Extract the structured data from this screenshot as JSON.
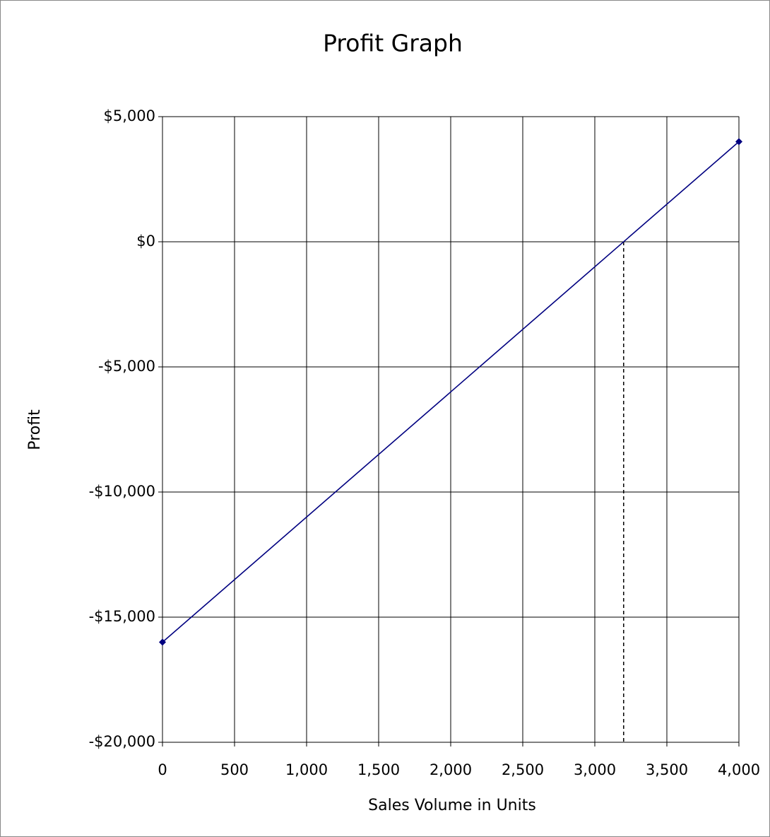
{
  "chart_data": {
    "type": "line",
    "title": "Profit Graph",
    "x_label": "Sales Volume in Units",
    "y_label": "Profit",
    "x": [
      0,
      4000
    ],
    "series": [
      {
        "name": "Profit",
        "color": "#000080",
        "values": [
          -16000,
          4000
        ]
      }
    ],
    "vline_x": 3200,
    "xlim": [
      0,
      4000
    ],
    "xticks": [
      0,
      500,
      {
        "value": 1000,
        "label": "1,000"
      },
      {
        "value": 1500,
        "label": "1,500"
      },
      {
        "value": 2000,
        "label": "2,000"
      },
      {
        "value": 2500,
        "label": "2,500"
      },
      {
        "value": 3000,
        "label": "3,000"
      },
      {
        "value": 3500,
        "label": "3,500"
      },
      {
        "value": 4000,
        "label": "4,000"
      }
    ],
    "ylim": [
      -20000,
      5000
    ],
    "yticks": [
      {
        "value": 5000,
        "label": "$5,000"
      },
      {
        "value": 0,
        "label": "$0"
      },
      {
        "value": -5000,
        "label": "-$5,000"
      },
      {
        "value": -10000,
        "label": "-$10,000"
      },
      {
        "value": -15000,
        "label": "-$15,000"
      },
      {
        "value": -20000,
        "label": "-$20,000"
      }
    ],
    "grid": true
  }
}
